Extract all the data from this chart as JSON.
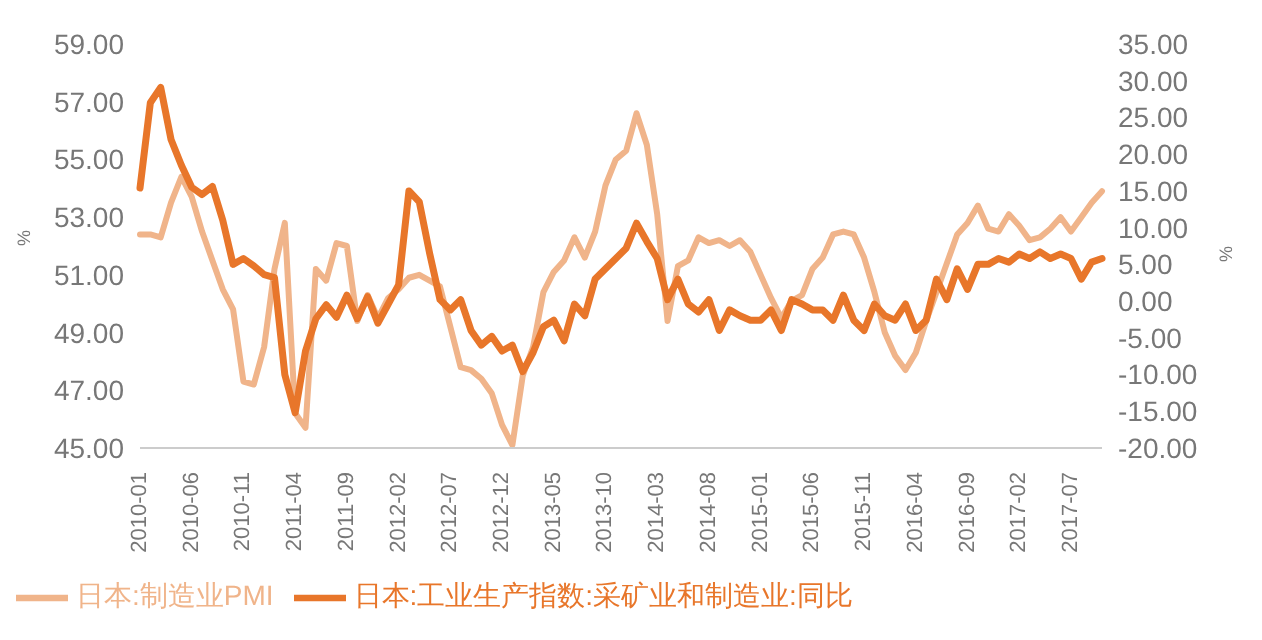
{
  "chart_data": {
    "type": "line",
    "ylabel": "%",
    "y2label": "%",
    "categories": [
      "2010-01",
      null,
      null,
      null,
      null,
      "2010-06",
      null,
      null,
      null,
      null,
      "2010-11",
      null,
      null,
      null,
      null,
      "2011-04",
      null,
      null,
      null,
      null,
      "2011-09",
      null,
      null,
      null,
      null,
      "2012-02",
      null,
      null,
      null,
      null,
      "2012-07",
      null,
      null,
      null,
      null,
      "2012-12",
      null,
      null,
      null,
      null,
      "2013-05",
      null,
      null,
      null,
      null,
      "2013-10",
      null,
      null,
      null,
      null,
      "2014-03",
      null,
      null,
      null,
      null,
      "2014-08",
      null,
      null,
      null,
      null,
      "2015-01",
      null,
      null,
      null,
      null,
      "2015-06",
      null,
      null,
      null,
      null,
      "2015-11",
      null,
      null,
      null,
      null,
      "2016-04",
      null,
      null,
      null,
      null,
      "2016-09",
      null,
      null,
      null,
      null,
      "2017-02",
      null,
      null,
      null,
      null,
      "2017-07",
      null,
      null,
      null
    ],
    "series": [
      {
        "name": "日本:制造业PMI",
        "color": "#f0b48a",
        "values": [
          52.4,
          52.4,
          52.3,
          53.5,
          54.4,
          53.7,
          52.5,
          51.5,
          50.5,
          49.8,
          47.3,
          47.2,
          48.5,
          51.2,
          52.8,
          46.2,
          45.7,
          51.2,
          50.8,
          52.1,
          52.0,
          49.4,
          50.3,
          49.5,
          50.2,
          50.5,
          50.9,
          51.0,
          50.8,
          50.6,
          49.2,
          47.8,
          47.7,
          47.4,
          46.9,
          45.8,
          45.1,
          47.5,
          48.5,
          50.4,
          51.1,
          51.5,
          52.3,
          51.6,
          52.5,
          54.1,
          55.0,
          55.3,
          56.6,
          55.5,
          53.1,
          49.4,
          51.3,
          51.5,
          52.3,
          52.1,
          52.2,
          52.0,
          52.2,
          51.8,
          51.0,
          50.2,
          49.5,
          50.1,
          50.3,
          51.2,
          51.6,
          52.4,
          52.5,
          52.4,
          51.6,
          50.4,
          49.0,
          48.2,
          47.7,
          48.3,
          49.4,
          50.4,
          51.4,
          52.4,
          52.8,
          53.4,
          52.6,
          52.5,
          53.1,
          52.7,
          52.2,
          52.3,
          52.6,
          53.0,
          52.5,
          53.0,
          53.5,
          53.9
        ]
      },
      {
        "name": "日本:工业生产指数:采矿业和制造业:同比",
        "color": "#e8762a",
        "axis": "y2",
        "values": [
          15.4,
          27,
          29.1,
          22,
          18.5,
          15.5,
          14.5,
          15.6,
          11,
          5,
          5.8,
          4.8,
          3.6,
          3.2,
          -10,
          -15.2,
          -6.8,
          -2.4,
          -0.5,
          -2.2,
          0.8,
          -2.4,
          0.6,
          -3,
          -0.4,
          2.2,
          15,
          13.5,
          6.5,
          0.2,
          -1.2,
          0.2,
          -4,
          -6,
          -4.8,
          -6.8,
          -6,
          -9.6,
          -7,
          -3.5,
          -2.6,
          -5.4,
          -0.4,
          -2,
          3,
          4.4,
          5.8,
          7.2,
          10.6,
          8.1,
          5.8,
          0.2,
          3,
          -0.4,
          -1.5,
          0.2,
          -4,
          -1.2,
          -2,
          -2.6,
          -2.6,
          -1.2,
          -4,
          0.2,
          -0.4,
          -1.2,
          -1.2,
          -2.6,
          0.8,
          -2.6,
          -4,
          -0.4,
          -2,
          -2.6,
          -0.4,
          -4,
          -2.6,
          3,
          0.2,
          4.4,
          1.6,
          5,
          5,
          5.8,
          5.3,
          6.4,
          5.8,
          6.7,
          5.8,
          6.4,
          5.8,
          3,
          5.3,
          5.8
        ]
      }
    ],
    "ylim": [
      45,
      59
    ],
    "yticks": [
      {
        "value": 45,
        "label": "45.00"
      },
      {
        "value": 47,
        "label": "47.00"
      },
      {
        "value": 49,
        "label": "49.00"
      },
      {
        "value": 51,
        "label": "51.00"
      },
      {
        "value": 53,
        "label": "53.00"
      },
      {
        "value": 55,
        "label": "55.00"
      },
      {
        "value": 57,
        "label": "57.00"
      },
      {
        "value": 59,
        "label": "59.00"
      }
    ],
    "y2lim": [
      -20,
      35
    ],
    "y2ticks": [
      {
        "value": -20,
        "label": "-20.00"
      },
      {
        "value": -15,
        "label": "-15.00"
      },
      {
        "value": -10,
        "label": "-10.00"
      },
      {
        "value": -5,
        "label": "-5.00"
      },
      {
        "value": 0,
        "label": "0.00"
      },
      {
        "value": 5,
        "label": "5.00"
      },
      {
        "value": 10,
        "label": "10.00"
      },
      {
        "value": 15,
        "label": "15.00"
      },
      {
        "value": 20,
        "label": "20.00"
      },
      {
        "value": 25,
        "label": "25.00"
      },
      {
        "value": 30,
        "label": "30.00"
      },
      {
        "value": 35,
        "label": "35.00"
      }
    ],
    "grid": false,
    "legend": "bottom left",
    "marker": "none",
    "line_style": "solid"
  }
}
